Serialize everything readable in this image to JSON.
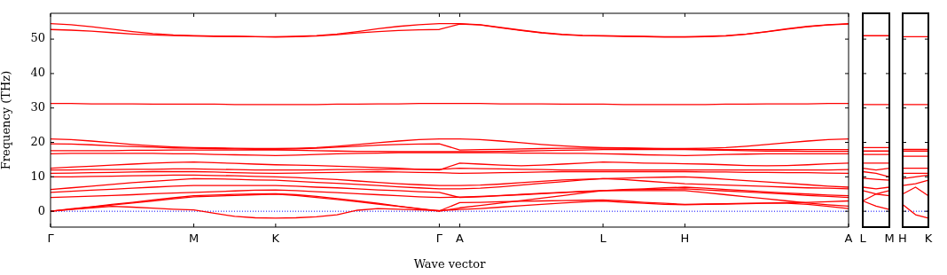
{
  "chart_data": [
    {
      "type": "line",
      "xlabel": "Wave vector",
      "ylabel": "Frequency (THz)",
      "ylim": [
        -4.6,
        57.5
      ],
      "categories": [
        "Γ",
        null,
        null,
        null,
        null,
        null,
        null,
        "M",
        null,
        null,
        null,
        "K",
        null,
        null,
        null,
        null,
        null,
        null,
        null,
        "Γ",
        "A",
        null,
        null,
        null,
        null,
        null,
        null,
        "L",
        null,
        null,
        null,
        "H",
        null,
        null,
        null,
        null,
        null,
        null,
        null,
        "A"
      ],
      "yticks": [
        0,
        10,
        20,
        30,
        40,
        50
      ],
      "grid": false,
      "legend": false,
      "ref_lines": [
        {
          "axis": "y",
          "value": 0,
          "color": "#0000ff",
          "line_style": "dotted"
        }
      ],
      "series": [
        {
          "color": "#ff0000",
          "values": [
            54.5,
            54.2,
            53.6,
            52.9,
            52.2,
            51.6,
            51.2,
            51.0,
            50.9,
            50.8,
            50.7,
            50.7,
            50.8,
            51,
            51.5,
            52.2,
            53,
            53.7,
            54.2,
            54.5,
            54.5,
            54.2,
            53.4,
            52.6,
            51.9,
            51.4,
            51.1,
            51.0,
            50.9,
            50.8,
            50.7,
            50.7,
            50.8,
            51,
            51.5,
            52.2,
            53,
            53.7,
            54.2,
            54.5
          ]
        },
        {
          "color": "#ff0000",
          "values": [
            52.8,
            52.6,
            52.3,
            51.9,
            51.5,
            51.2,
            51.0,
            50.9,
            50.8,
            50.8,
            50.7,
            50.6,
            50.7,
            50.9,
            51.3,
            51.8,
            52.2,
            52.5,
            52.7,
            52.8,
            54.4,
            54.1,
            53.3,
            52.5,
            51.8,
            51.3,
            51.0,
            50.9,
            50.8,
            50.7,
            50.6,
            50.6,
            50.7,
            50.9,
            51.4,
            52.1,
            52.9,
            53.6,
            54.1,
            54.4
          ]
        },
        {
          "color": "#ff0000",
          "values": [
            31.3,
            31.3,
            31.2,
            31.2,
            31.2,
            31.1,
            31.1,
            31.1,
            31.1,
            31.0,
            31.0,
            31.0,
            31.0,
            31.0,
            31.1,
            31.1,
            31.2,
            31.2,
            31.3,
            31.3,
            31.3,
            31.3,
            31.2,
            31.2,
            31.2,
            31.1,
            31.1,
            31.1,
            31.0,
            31.0,
            31.0,
            31.0,
            31.0,
            31.1,
            31.1,
            31.2,
            31.2,
            31.2,
            31.3,
            31.3
          ]
        },
        {
          "color": "#ff0000",
          "values": [
            21,
            20.8,
            20.4,
            19.9,
            19.4,
            19,
            18.7,
            18.5,
            18.4,
            18.3,
            18.2,
            18.2,
            18.3,
            18.5,
            18.9,
            19.4,
            19.9,
            20.4,
            20.8,
            21,
            21,
            20.8,
            20.4,
            19.9,
            19.4,
            19,
            18.7,
            18.5,
            18.4,
            18.3,
            18.2,
            18.2,
            18.3,
            18.5,
            18.9,
            19.4,
            19.9,
            20.4,
            20.8,
            21
          ]
        },
        {
          "color": "#ff0000",
          "values": [
            19.6,
            19.5,
            19.3,
            19,
            18.8,
            18.6,
            18.4,
            18.3,
            18.2,
            18.1,
            18.0,
            18.0,
            18.1,
            18.3,
            18.6,
            18.9,
            19.2,
            19.4,
            19.5,
            19.6,
            17.8,
            17.9,
            18.0,
            18.1,
            18.2,
            18.3,
            18.3,
            18.4,
            18.3,
            18.2,
            18.1,
            18.0,
            18.0,
            17.9,
            17.9,
            17.9,
            17.9,
            17.9,
            17.9,
            17.9
          ]
        },
        {
          "color": "#ff0000",
          "values": [
            17.6,
            17.6,
            17.6,
            17.6,
            17.7,
            17.7,
            17.8,
            17.8,
            17.8,
            17.8,
            17.8,
            17.8,
            17.7,
            17.6,
            17.5,
            17.4,
            17.4,
            17.3,
            17.3,
            17.3,
            17.3,
            17.3,
            17.4,
            17.5,
            17.6,
            17.7,
            17.8,
            17.9,
            17.9,
            17.9,
            17.9,
            17.9,
            17.8,
            17.7,
            17.6,
            17.5,
            17.5,
            17.4,
            17.4,
            17.4
          ]
        },
        {
          "color": "#ff0000",
          "values": [
            16.7,
            16.8,
            16.8,
            16.8,
            16.8,
            16.8,
            16.7,
            16.7,
            16.5,
            16.4,
            16.3,
            16.2,
            16.3,
            16.5,
            16.7,
            16.8,
            16.9,
            17,
            17,
            17,
            17,
            17,
            17,
            16.9,
            16.9,
            16.8,
            16.8,
            16.7,
            16.6,
            16.4,
            16.3,
            16.2,
            16.3,
            16.5,
            16.6,
            16.7,
            16.7,
            16.7,
            16.7,
            16.7
          ]
        },
        {
          "color": "#ff0000",
          "values": [
            12.5,
            12.8,
            13.1,
            13.4,
            13.7,
            14,
            14.2,
            14.3,
            14.1,
            13.9,
            13.7,
            13.5,
            13.4,
            13.3,
            13.1,
            12.9,
            12.7,
            12.5,
            12.2,
            12.0,
            14,
            13.7,
            13.4,
            13.2,
            13.4,
            13.7,
            14.0,
            14.3,
            14.2,
            14.0,
            13.9,
            13.8,
            13.7,
            13.5,
            13.3,
            13.2,
            13.3,
            13.5,
            13.8,
            14.0
          ]
        },
        {
          "color": "#ff0000",
          "values": [
            12,
            12,
            12.1,
            12.1,
            12.2,
            12.2,
            12.3,
            12.3,
            12.2,
            12.1,
            12.0,
            12.0,
            12,
            12,
            12.1,
            12.1,
            12.1,
            12.2,
            12.2,
            12.2,
            12.5,
            12.4,
            12.3,
            12.2,
            12.1,
            12.0,
            12.0,
            12.0,
            12,
            12,
            12,
            12,
            12,
            12,
            12,
            12,
            12,
            12,
            12,
            12.1
          ]
        },
        {
          "color": "#ff0000",
          "values": [
            11,
            11.1,
            11.2,
            11.3,
            11.4,
            11.5,
            11.5,
            11.5,
            11.4,
            11.2,
            11.1,
            11.0,
            11.1,
            11.2,
            11.3,
            11.4,
            11.5,
            11.4,
            11.3,
            11.2,
            11,
            11.1,
            11.2,
            11.3,
            11.4,
            11.5,
            11.5,
            11.5,
            11.5,
            11.5,
            11.5,
            11.5,
            11.4,
            11.4,
            11.3,
            11.3,
            11.2,
            11.2,
            11.1,
            11.0
          ]
        },
        {
          "color": "#ff0000",
          "values": [
            10,
            10,
            10.1,
            10.2,
            10.3,
            10.4,
            10.5,
            10.5,
            10.4,
            10.3,
            10.1,
            10.0,
            9.8,
            9.5,
            9.2,
            8.8,
            8.4,
            8.0,
            7.7,
            7.5,
            7.5,
            7.6,
            7.9,
            8.3,
            8.7,
            9.1,
            9.3,
            9.5,
            9.6,
            9.8,
            9.9,
            10.0,
            9.7,
            9.3,
            8.9,
            8.5,
            8.1,
            7.7,
            7.3,
            7.0
          ]
        },
        {
          "color": "#ff0000",
          "values": [
            6.3,
            6.8,
            7.3,
            7.8,
            8.3,
            8.7,
            9.1,
            9.5,
            9.4,
            9.3,
            9.1,
            9.0,
            8.7,
            8.4,
            8.1,
            7.8,
            7.5,
            7.1,
            6.8,
            6.5,
            6.5,
            6.7,
            7.1,
            7.6,
            8.1,
            8.6,
            9.1,
            9.5,
            9.2,
            8.8,
            8.4,
            8.0,
            7.8,
            7.6,
            7.4,
            7.2,
            7.0,
            6.8,
            6.7,
            6.5
          ]
        },
        {
          "color": "#ff0000",
          "values": [
            5.5,
            5.8,
            6.1,
            6.4,
            6.7,
            7.0,
            7.3,
            7.5,
            7.5,
            7.5,
            7.5,
            7.5,
            7.3,
            7.0,
            6.8,
            6.5,
            6.2,
            6.0,
            5.7,
            5.5,
            4,
            4.2,
            4.5,
            4.8,
            5.1,
            5.4,
            5.7,
            6.0,
            6.3,
            6.5,
            6.8,
            7.0,
            6.7,
            6.3,
            6.0,
            5.6,
            5.3,
            5.0,
            4.7,
            4.5
          ]
        },
        {
          "color": "#ff0000",
          "values": [
            4,
            4.2,
            4.4,
            4.6,
            4.8,
            5.1,
            5.3,
            5.5,
            5.7,
            5.9,
            6.1,
            6.2,
            6.0,
            5.7,
            5.4,
            5.1,
            4.8,
            4.5,
            4.2,
            4.0,
            4.1,
            4.3,
            4.6,
            4.9,
            5.2,
            5.5,
            5.8,
            6.0,
            6.1,
            6.3,
            6.4,
            6.5,
            6.2,
            5.9,
            5.6,
            5.3,
            5.0,
            4.6,
            4.3,
            4.0
          ]
        },
        {
          "color": "#ff0000",
          "values": [
            0,
            0.6,
            1.2,
            1.8,
            2.4,
            3.0,
            3.6,
            4.2,
            4.4,
            4.6,
            4.8,
            5.0,
            4.6,
            4.0,
            3.4,
            2.8,
            2.1,
            1.4,
            0.7,
            0,
            1.0,
            1.7,
            2.4,
            3.1,
            3.8,
            4.5,
            5.3,
            6.0,
            6.0,
            6.0,
            6.0,
            6.0,
            5.4,
            4.8,
            4.2,
            3.6,
            3.0,
            2.4,
            1.9,
            1.5
          ]
        },
        {
          "color": "#ff0000",
          "values": [
            0,
            0.7,
            1.3,
            2.0,
            2.6,
            3.3,
            3.9,
            4.5,
            4.7,
            4.9,
            5.0,
            5.1,
            4.8,
            4.3,
            3.7,
            3.0,
            2.3,
            1.5,
            0.8,
            0.1,
            2.5,
            2.6,
            2.8,
            2.9,
            3.0,
            3.1,
            3.2,
            3.3,
            3.0,
            2.6,
            2.3,
            2.0,
            2.1,
            2.2,
            2.3,
            2.4,
            2.5,
            2.6,
            2.8,
            3.0
          ]
        },
        {
          "color": "#ff0000",
          "values": [
            0,
            0.5,
            1.0,
            1.4,
            1.2,
            0.9,
            0.6,
            0.4,
            -0.6,
            -1.5,
            -1.9,
            -2.0,
            -1.9,
            -1.6,
            -1.0,
            0.3,
            0.8,
            0.6,
            0.4,
            0.2,
            0.5,
            0.8,
            1.2,
            1.6,
            2.0,
            2.4,
            2.7,
            3.0,
            2.6,
            2.3,
            2.0,
            1.9,
            2.0,
            2.1,
            2.2,
            2.3,
            2.3,
            2.0,
            1.4,
            0.8
          ]
        }
      ]
    },
    {
      "type": "line",
      "ylim": [
        -4.6,
        57.5
      ],
      "tick_labels": "x",
      "categories": [
        "L",
        null,
        "M"
      ],
      "yticks": [
        {
          "value": 0,
          "label": null
        },
        {
          "value": 10,
          "label": null
        },
        {
          "value": 20,
          "label": null
        },
        {
          "value": 30,
          "label": null
        },
        {
          "value": 40,
          "label": null
        },
        {
          "value": 50,
          "label": null
        }
      ],
      "grid": false,
      "legend": false,
      "ref_lines": [
        {
          "axis": "y",
          "value": 0,
          "color": "#0000ff",
          "line_style": "dotted"
        }
      ],
      "series": [
        {
          "color": "#ff0000",
          "values": [
            51,
            51,
            51
          ]
        },
        {
          "color": "#ff0000",
          "values": [
            31,
            31,
            31
          ]
        },
        {
          "color": "#ff0000",
          "values": [
            18.5,
            18.5,
            18.5
          ]
        },
        {
          "color": "#ff0000",
          "values": [
            17.5,
            17.5,
            17.5
          ]
        },
        {
          "color": "#ff0000",
          "values": [
            16.5,
            16.5,
            16.5
          ]
        },
        {
          "color": "#ff0000",
          "values": [
            14,
            14,
            14
          ]
        },
        {
          "color": "#ff0000",
          "values": [
            12.5,
            12,
            12.5
          ]
        },
        {
          "color": "#ff0000",
          "values": [
            11.5,
            11,
            10
          ]
        },
        {
          "color": "#ff0000",
          "values": [
            9.6,
            9.3,
            9
          ]
        },
        {
          "color": "#ff0000",
          "values": [
            7,
            6.5,
            7
          ]
        },
        {
          "color": "#ff0000",
          "values": [
            6,
            5,
            4.5
          ]
        },
        {
          "color": "#ff0000",
          "values": [
            3,
            5,
            6
          ]
        },
        {
          "color": "#ff0000",
          "values": [
            3,
            1.5,
            0.5
          ]
        }
      ]
    },
    {
      "type": "line",
      "ylim": [
        -4.6,
        57.5
      ],
      "tick_labels": "x",
      "categories": [
        "H",
        null,
        "K"
      ],
      "yticks": [
        {
          "value": 0,
          "label": null
        },
        {
          "value": 10,
          "label": null
        },
        {
          "value": 20,
          "label": null
        },
        {
          "value": 30,
          "label": null
        },
        {
          "value": 40,
          "label": null
        },
        {
          "value": 50,
          "label": null
        }
      ],
      "grid": false,
      "legend": false,
      "ref_lines": [
        {
          "axis": "y",
          "value": 0,
          "color": "#0000ff",
          "line_style": "dotted"
        }
      ],
      "series": [
        {
          "color": "#ff0000",
          "values": [
            50.7,
            50.7,
            50.7
          ]
        },
        {
          "color": "#ff0000",
          "values": [
            31,
            31,
            31
          ]
        },
        {
          "color": "#ff0000",
          "values": [
            18,
            18,
            18
          ]
        },
        {
          "color": "#ff0000",
          "values": [
            17.5,
            17.5,
            17.5
          ]
        },
        {
          "color": "#ff0000",
          "values": [
            16,
            16,
            16
          ]
        },
        {
          "color": "#ff0000",
          "values": [
            12.5,
            12.5,
            12.5
          ]
        },
        {
          "color": "#ff0000",
          "values": [
            11,
            11,
            11
          ]
        },
        {
          "color": "#ff0000",
          "values": [
            9.5,
            10,
            10.5
          ]
        },
        {
          "color": "#ff0000",
          "values": [
            7.5,
            8,
            9
          ]
        },
        {
          "color": "#ff0000",
          "values": [
            5,
            7,
            4.5
          ]
        },
        {
          "color": "#ff0000",
          "values": [
            2,
            -1,
            -2
          ]
        }
      ]
    }
  ]
}
